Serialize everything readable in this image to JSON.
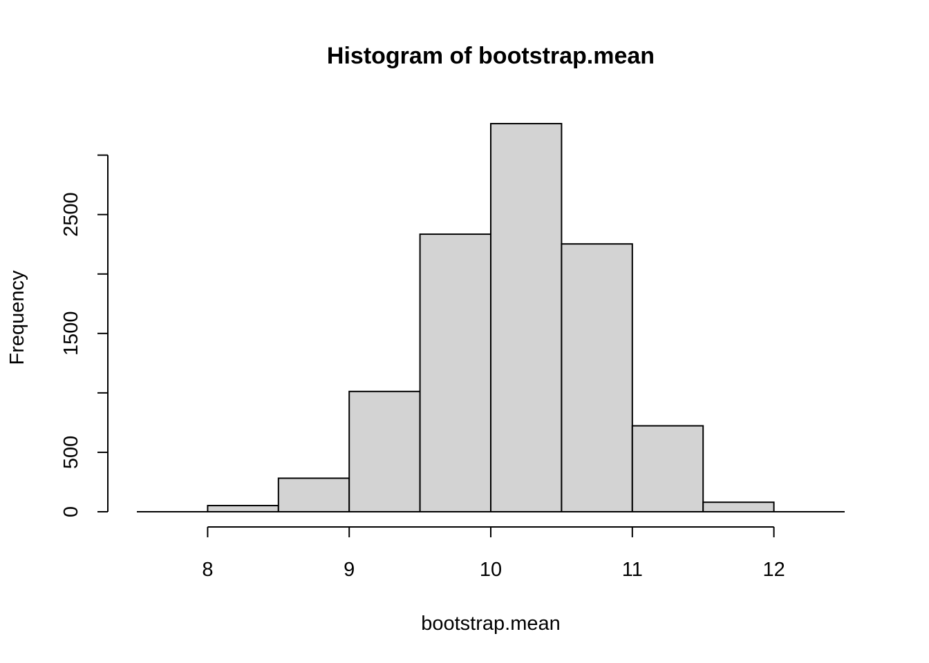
{
  "chart_data": {
    "type": "bar",
    "title": "Histogram of bootstrap.mean",
    "xlabel": "bootstrap.mean",
    "ylabel": "Frequency",
    "bins": [
      {
        "from": 8.0,
        "to": 8.5,
        "count": 52
      },
      {
        "from": 8.5,
        "to": 9.0,
        "count": 282
      },
      {
        "from": 9.0,
        "to": 9.5,
        "count": 1012
      },
      {
        "from": 9.5,
        "to": 10.0,
        "count": 2335
      },
      {
        "from": 10.0,
        "to": 10.5,
        "count": 3265
      },
      {
        "from": 10.5,
        "to": 11.0,
        "count": 2253
      },
      {
        "from": 11.0,
        "to": 11.5,
        "count": 723
      },
      {
        "from": 11.5,
        "to": 12.0,
        "count": 80
      }
    ],
    "x_ticks": [
      8,
      9,
      10,
      11,
      12
    ],
    "x_tick_labels": [
      "8",
      "9",
      "10",
      "11",
      "12"
    ],
    "y_ticks": [
      0,
      500,
      1000,
      1500,
      2000,
      2500,
      3000
    ],
    "y_tick_labels": [
      "0",
      "500",
      "",
      "1500",
      "",
      "2500",
      ""
    ],
    "xlim": [
      7.5,
      12.5
    ],
    "ylim": [
      0,
      3265
    ],
    "grid": false,
    "bar_fill": "#d3d3d3",
    "bar_stroke": "#000000"
  }
}
